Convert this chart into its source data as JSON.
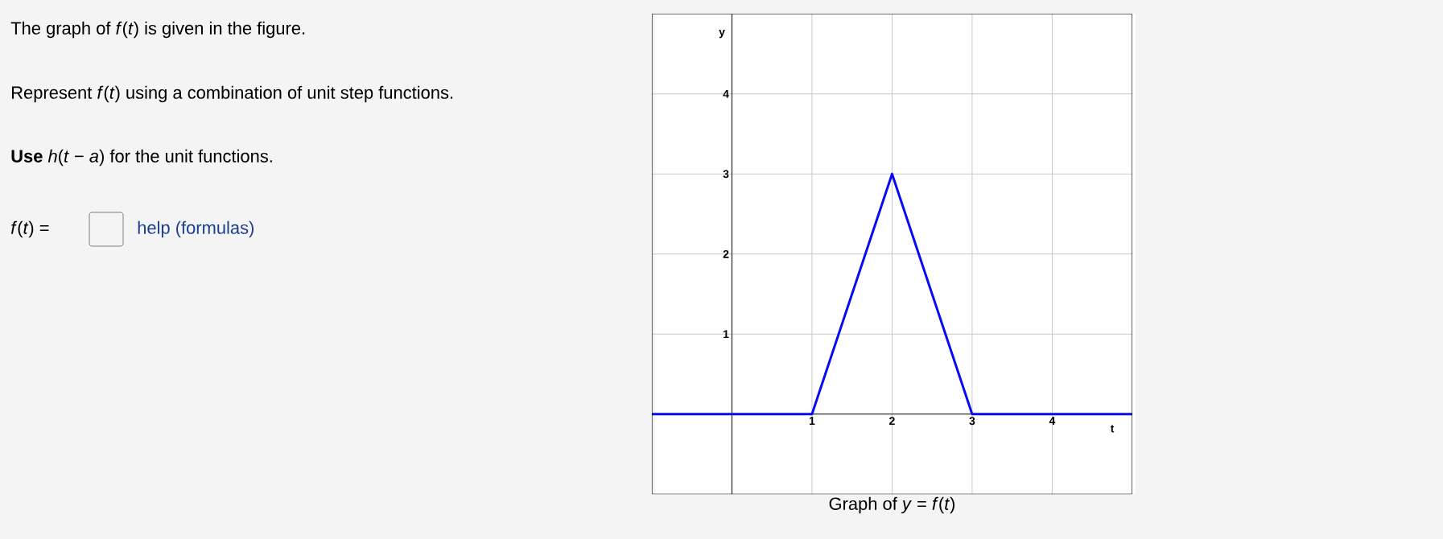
{
  "chart_data": {
    "type": "line",
    "title": "Graph of *y* = *f*(*t*)",
    "xlabel": "t",
    "ylabel": "y",
    "annotations": [
      "The graph of *f*(*t*) is given in the figure.",
      "Represent *f*(*t*) using a combination of unit step functions.",
      "**Use** *h*(*t* − *a*) for the unit functions.",
      "*f*(*t*) =",
      "help (formulas)"
    ],
    "series": [
      {
        "color": "#0a0af0",
        "x": [
          -1,
          1,
          2,
          3,
          5
        ],
        "values": [
          0,
          0,
          3,
          0,
          0
        ]
      }
    ],
    "xlim": [
      -1,
      5
    ],
    "ylim": [
      -1,
      5
    ],
    "xticks": [
      1,
      2,
      3,
      4
    ],
    "yticks": [
      1,
      2,
      3,
      4
    ],
    "grid": true,
    "marker": "none",
    "line_style": "solid"
  }
}
